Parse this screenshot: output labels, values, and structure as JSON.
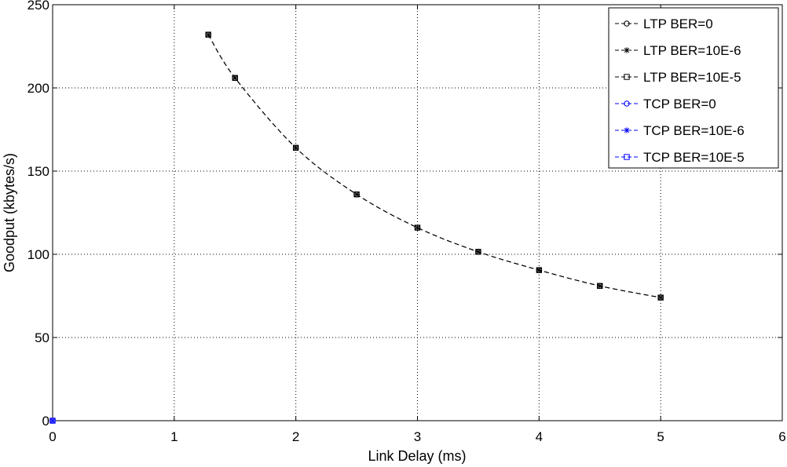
{
  "chart_data": {
    "type": "line",
    "xlabel": "Link Delay (ms)",
    "ylabel": "Goodput (kbytes/s)",
    "xlim": [
      0,
      6
    ],
    "ylim": [
      0,
      250
    ],
    "xticks": [
      "0",
      "1",
      "2",
      "3",
      "4",
      "5",
      "6"
    ],
    "yticks": [
      "0",
      "50",
      "100",
      "150",
      "200",
      "250"
    ],
    "grid": true,
    "legend_position": "top-right",
    "series": [
      {
        "name": "LTP BER=0",
        "color": "#000000",
        "marker": "circle",
        "line": "dashed",
        "x": [
          1.28,
          1.5,
          2.0,
          2.5,
          3.0,
          3.5,
          4.0,
          4.5,
          5.0
        ],
        "y": [
          232,
          206,
          164,
          136,
          116,
          101.5,
          90.5,
          81,
          74
        ]
      },
      {
        "name": "LTP BER=10E-6",
        "color": "#000000",
        "marker": "star",
        "line": "dashed",
        "x": [
          1.28,
          1.5,
          2.0,
          2.5,
          3.0,
          3.5,
          4.0,
          4.5,
          5.0
        ],
        "y": [
          232,
          206,
          164,
          136,
          116,
          101.5,
          90.5,
          81,
          74
        ]
      },
      {
        "name": "LTP BER=10E-5",
        "color": "#000000",
        "marker": "square",
        "line": "dashed",
        "x": [
          1.28,
          1.5,
          2.0,
          2.5,
          3.0,
          3.5,
          4.0,
          4.5,
          5.0
        ],
        "y": [
          232,
          206,
          164,
          136,
          116,
          101.5,
          90.5,
          81,
          74
        ]
      },
      {
        "name": "TCP BER=0",
        "color": "#0000ff",
        "marker": "circle",
        "line": "dashed",
        "x": [
          0
        ],
        "y": [
          0
        ]
      },
      {
        "name": "TCP BER=10E-6",
        "color": "#0000ff",
        "marker": "star",
        "line": "dashed",
        "x": [
          0
        ],
        "y": [
          0
        ]
      },
      {
        "name": "TCP BER=10E-5",
        "color": "#0000ff",
        "marker": "square",
        "line": "dashed",
        "x": [
          0
        ],
        "y": [
          0
        ]
      }
    ]
  }
}
